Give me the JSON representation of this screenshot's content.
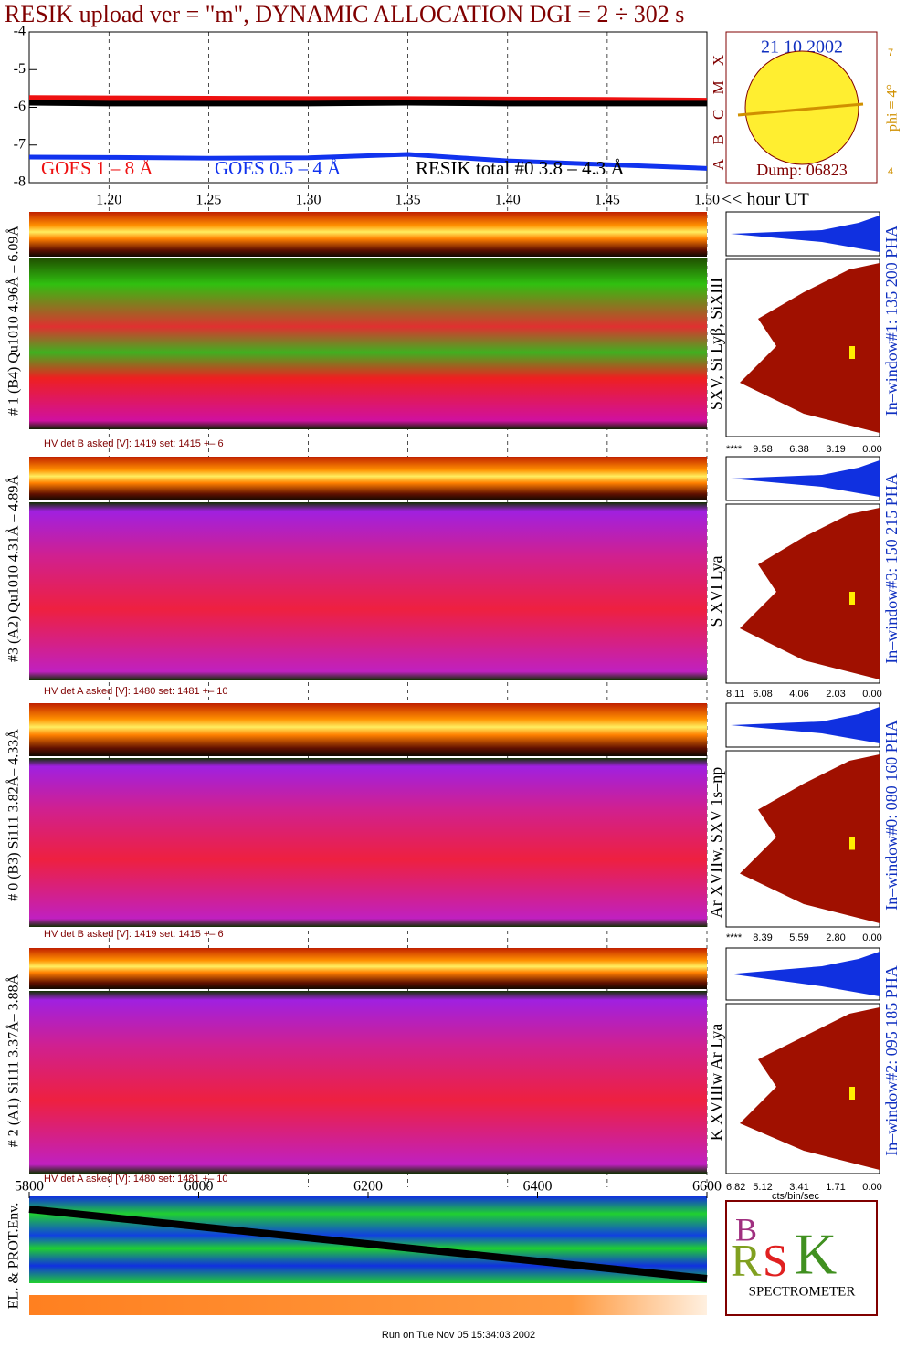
{
  "chart_data": [
    {
      "type": "line",
      "title": "RESIK upload ver = \"m\", DYNAMIC ALLOCATION  DGI =   2 ÷ 302 s",
      "x_label": "<< hour UT",
      "x": [
        1.16,
        1.2,
        1.25,
        1.3,
        1.35,
        1.4,
        1.45,
        1.5
      ],
      "series": [
        {
          "name": "GOES 1 – 8 Å",
          "color": "#ee1111",
          "values": [
            -5.75,
            -5.76,
            -5.77,
            -5.78,
            -5.78,
            -5.79,
            -5.8,
            -5.82
          ]
        },
        {
          "name": "GOES 0.5 – 4 Å",
          "color": "#1133ee",
          "values": [
            -7.32,
            -7.33,
            -7.35,
            -7.34,
            -7.25,
            -7.42,
            -7.52,
            -7.62
          ]
        },
        {
          "name": "RESIK total #0  3.8 – 4.3 Å",
          "color": "#000000",
          "values": [
            -5.88,
            -5.9,
            -5.9,
            -5.9,
            -5.88,
            -5.9,
            -5.9,
            -5.9
          ]
        }
      ],
      "xlim": [
        1.16,
        1.5
      ],
      "xticks": [
        {
          "value": 1.2,
          "label": "1.20"
        },
        1.25,
        {
          "value": 1.3,
          "label": "1.30"
        },
        1.35,
        {
          "value": 1.4,
          "label": "1.40"
        },
        1.45,
        {
          "value": 1.5,
          "label": "1.50"
        }
      ],
      "ylim": [
        -8,
        -4
      ],
      "yticks": [
        -4,
        -5,
        -6,
        -7,
        -8
      ],
      "grid": true
    },
    {
      "type": "orbit",
      "y_label": "EL. & PROT.Env.",
      "xlim": [
        5800,
        6600
      ],
      "xticks": [
        5800,
        6000,
        6200,
        6400,
        6600
      ]
    }
  ],
  "info": {
    "date": "21 10 2002",
    "dump": "Dump: 06823",
    "phi": "phi =  4°",
    "classes": "A  B  C  M  X",
    "scale_top": "7",
    "scale_bottom": "4"
  },
  "panels": [
    {
      "label": "# 1 (B4) Qu1010 4.96Å – 6.09Å",
      "hv": "HV det B asked [V]:  1419 set:  1415 +–   6",
      "lines": "SXV, Si Lyβ, SiXIII",
      "window": "In–window#1:  135 200 PHA",
      "hist_ticks": [
        "****",
        "9.58",
        "6.38",
        "3.19",
        "0.00"
      ]
    },
    {
      "label": "#3 (A2) Qu1010  4.31Å – 4.89Å",
      "hv": "HV det A asked [V]:  1480 set:  1481  +–   10",
      "lines": "S XVI Lya",
      "window": "In–window#3:  150 215 PHA",
      "hist_ticks": [
        "8.11",
        "6.08",
        "4.06",
        "2.03",
        "0.00"
      ]
    },
    {
      "label": "# 0 (B3) Si111  3.82Å– 4.33Å",
      "hv": "HV det B asked [V]:  1419 set:  1415 +–   6",
      "lines": "Ar XVIIw,  SXV 1s–np",
      "window": "In–window#0:  080 160 PHA",
      "hist_ticks": [
        "****",
        "8.39",
        "5.59",
        "2.80",
        "0.00"
      ]
    },
    {
      "label": "# 2 (A1) Si111  3.37Å– 3.88Å",
      "hv": "HV det A asked [V]:  1480 set:  1481  +–   10",
      "lines": "K XVIIIw  Ar Lya",
      "window": "In–window#2:  095 185 PHA",
      "hist_ticks": [
        "6.82",
        "5.12",
        "3.41",
        "1.71",
        "0.00"
      ]
    }
  ],
  "hist_unit": "cts/bin/sec",
  "logo": "SPECTROMETER",
  "footer": "Run on Tue Nov 05 15:34:03 2002"
}
